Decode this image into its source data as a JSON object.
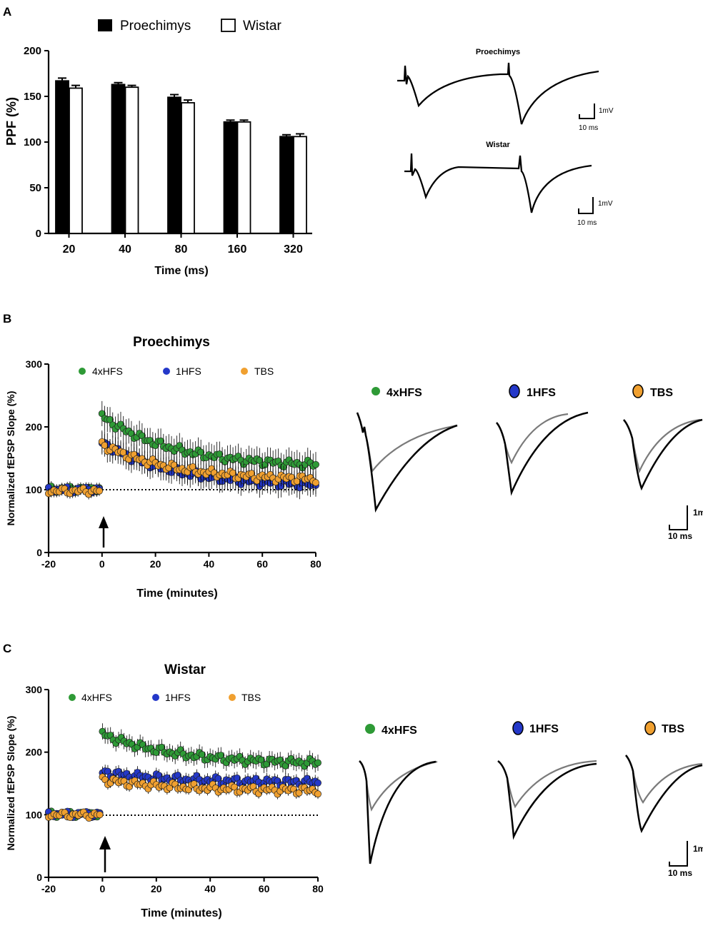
{
  "panels": {
    "a": "A",
    "b": "B",
    "c": "C"
  },
  "colors": {
    "green": "#2e9a36",
    "blue": "#2438c9",
    "orange": "#f0a030",
    "trace_gray": "#7a7a7a",
    "black": "#000000"
  },
  "trace_labels": {
    "proechimys": "Proechimys",
    "wistar": "Wistar",
    "mv": "1mV",
    "ms": "10 ms",
    "mv_cut": "1m"
  },
  "chart_data": [
    {
      "id": "ppf",
      "type": "bar",
      "title": "",
      "xlabel": "Time (ms)",
      "ylabel": "PPF (%)",
      "ylim": [
        0,
        200
      ],
      "yticks": [
        0,
        50,
        100,
        150,
        200
      ],
      "categories": [
        "20",
        "40",
        "80",
        "160",
        "320"
      ],
      "legend": [
        "Proechimys",
        "Wistar"
      ],
      "series": [
        {
          "name": "Proechimys",
          "fill": "black",
          "values": [
            167,
            163,
            149,
            122,
            106
          ],
          "errors": [
            3,
            2,
            3,
            2,
            2
          ]
        },
        {
          "name": "Wistar",
          "fill": "white",
          "values": [
            159,
            160,
            143,
            122,
            106
          ],
          "errors": [
            3,
            2,
            3,
            2,
            3
          ]
        }
      ]
    },
    {
      "id": "ltp-proechimys",
      "type": "scatter",
      "title": "Proechimys",
      "xlabel": "Time (minutes)",
      "ylabel": "Normalized fEPSP Slope (%)",
      "xlim": [
        -20,
        80
      ],
      "ylim": [
        0,
        300
      ],
      "xticks": [
        -20,
        0,
        20,
        40,
        60,
        80
      ],
      "yticks": [
        0,
        100,
        200,
        300
      ],
      "baseline": 100,
      "stimulus_time": 0,
      "legend": [
        "4xHFS",
        "1HFS",
        "TBS"
      ],
      "series": [
        {
          "name": "4xHFS",
          "color": "green",
          "base": 101,
          "post_start": 217,
          "post_end": 140,
          "post_error": 20,
          "pre_error": 8
        },
        {
          "name": "1HFS",
          "color": "blue",
          "base": 100,
          "post_start": 175,
          "post_end": 108,
          "post_error": 18,
          "pre_error": 8
        },
        {
          "name": "TBS",
          "color": "orange",
          "base": 98,
          "post_start": 172,
          "post_end": 117,
          "post_error": 18,
          "pre_error": 8
        }
      ]
    },
    {
      "id": "ltp-wistar",
      "type": "scatter",
      "title": "Wistar",
      "xlabel": "Time (minutes)",
      "ylabel": "Normalized fEPSP Slope (%)",
      "xlim": [
        -20,
        80
      ],
      "ylim": [
        0,
        300
      ],
      "xticks": [
        -20,
        0,
        20,
        40,
        60,
        80
      ],
      "yticks": [
        0,
        100,
        200,
        300
      ],
      "baseline": 100,
      "stimulus_time": 0,
      "legend": [
        "4xHFS",
        "1HFS",
        "TBS"
      ],
      "series": [
        {
          "name": "4xHFS",
          "color": "green",
          "base": 101,
          "post_start": 229,
          "post_end": 183,
          "post_error": 13,
          "pre_error": 5
        },
        {
          "name": "1HFS",
          "color": "blue",
          "base": 101,
          "post_start": 168,
          "post_end": 152,
          "post_error": 10,
          "pre_error": 5
        },
        {
          "name": "TBS",
          "color": "orange",
          "base": 100,
          "post_start": 156,
          "post_end": 139,
          "post_error": 8,
          "pre_error": 5
        }
      ]
    }
  ]
}
